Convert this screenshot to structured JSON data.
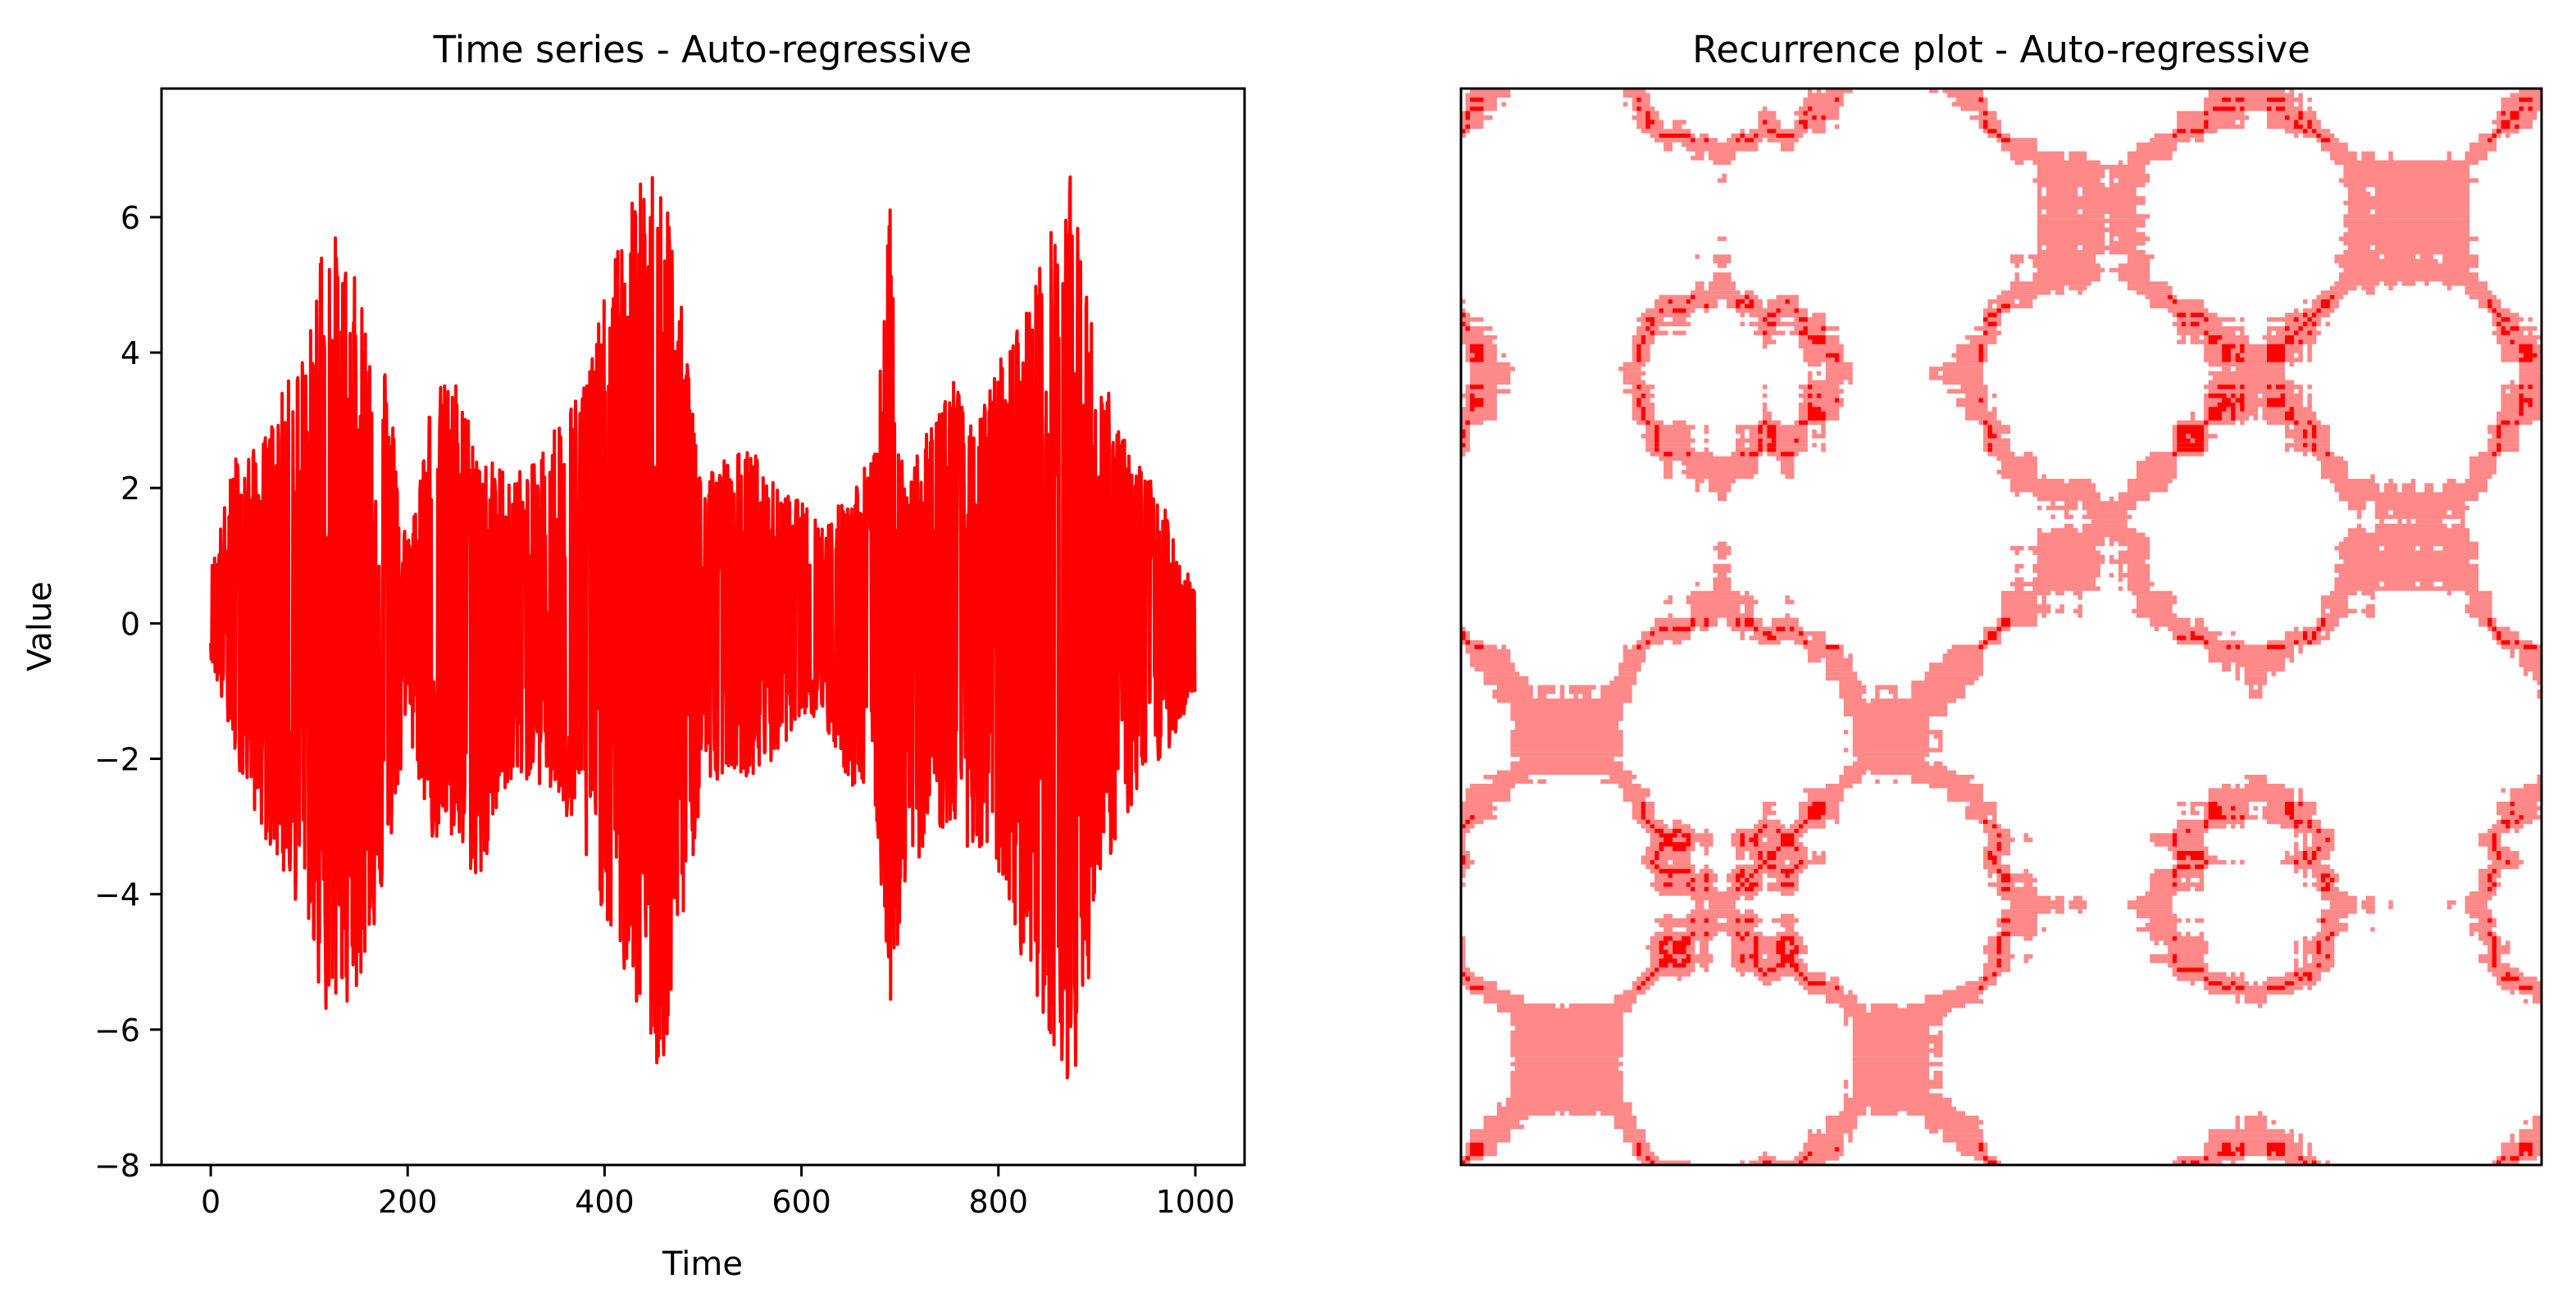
{
  "chart_data": [
    {
      "type": "line",
      "title": "Time series - Auto-regressive",
      "xlabel": "Time",
      "ylabel": "Value",
      "xlim": [
        -50,
        1050
      ],
      "ylim": [
        -8,
        7.9
      ],
      "xticks": [
        0,
        200,
        400,
        600,
        800,
        1000
      ],
      "xtick_labels": [
        "0",
        "200",
        "400",
        "600",
        "800",
        "1000"
      ],
      "yticks": [
        -8,
        -6,
        -4,
        -2,
        0,
        2,
        4,
        6
      ],
      "ytick_labels": [
        "−8",
        "−6",
        "−4",
        "−2",
        "0",
        "2",
        "4",
        "6"
      ],
      "grid": false,
      "legend": false,
      "series": [
        {
          "color": "#ff0000",
          "x": [
            0,
            25,
            50,
            75,
            100,
            115,
            125,
            150,
            175,
            200,
            225,
            250,
            275,
            300,
            325,
            350,
            375,
            400,
            425,
            450,
            458,
            475,
            500,
            525,
            550,
            575,
            600,
            625,
            650,
            675,
            690,
            700,
            725,
            750,
            775,
            800,
            825,
            850,
            875,
            885,
            900,
            925,
            950,
            975,
            1000
          ],
          "upper": [
            0.8,
            2.5,
            2.6,
            3.5,
            4.2,
            6.2,
            5.8,
            5.0,
            4.2,
            1.2,
            3.5,
            3.6,
            2.5,
            2.3,
            2.3,
            3.0,
            3.5,
            4.8,
            6.3,
            6.8,
            7.2,
            5.0,
            2.3,
            2.5,
            2.6,
            2.0,
            1.8,
            1.5,
            2.0,
            2.6,
            6.2,
            2.5,
            2.7,
            3.9,
            2.8,
            3.9,
            4.6,
            5.7,
            6.7,
            5.5,
            4.0,
            2.8,
            2.3,
            1.5,
            0.5
          ],
          "lower": [
            -0.5,
            -2.0,
            -3.0,
            -3.8,
            -4.5,
            -5.9,
            -5.8,
            -5.4,
            -4.0,
            -1.6,
            -3.2,
            -3.4,
            -3.9,
            -2.4,
            -2.3,
            -2.6,
            -3.4,
            -4.3,
            -5.5,
            -6.3,
            -7.3,
            -4.8,
            -2.6,
            -2.1,
            -2.3,
            -2.0,
            -1.3,
            -1.6,
            -2.4,
            -2.8,
            -5.7,
            -4.5,
            -3.2,
            -3.0,
            -3.4,
            -3.7,
            -5.0,
            -6.0,
            -6.9,
            -6.2,
            -4.0,
            -3.0,
            -2.4,
            -1.8,
            -1.0
          ]
        }
      ]
    },
    {
      "type": "heatmap",
      "title": "Recurrence plot - Auto-regressive",
      "xticks": [],
      "yticks": [],
      "grid": false,
      "legend": false,
      "colors": {
        "light": "#ff8888",
        "dense": "#ff0000",
        "background": "#ffffff"
      }
    }
  ]
}
